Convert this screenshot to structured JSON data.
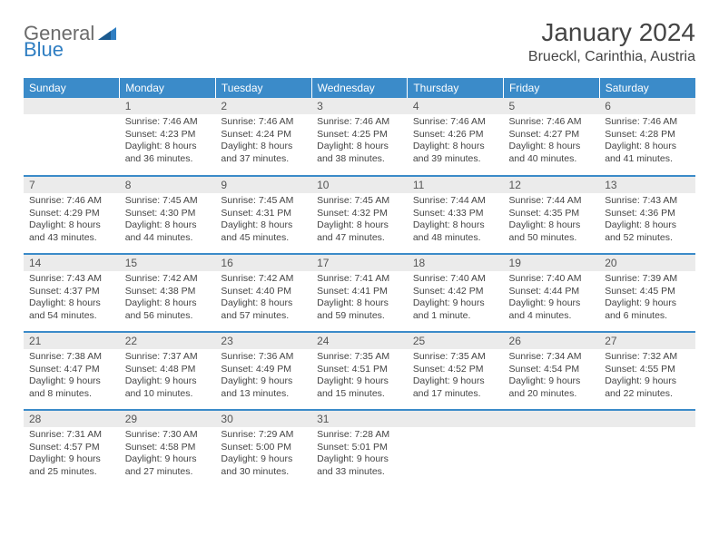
{
  "logo": {
    "general": "General",
    "blue": "Blue"
  },
  "header": {
    "month_title": "January 2024",
    "location": "Brueckl, Carinthia, Austria"
  },
  "colors": {
    "header_bg": "#3b8bc9",
    "header_text": "#ffffff",
    "daynum_bg": "#ebebeb",
    "body_text": "#444444",
    "row_divider": "#3b8bc9",
    "logo_gray": "#6b6b6b",
    "logo_blue": "#2f7ec2"
  },
  "weekdays": [
    "Sunday",
    "Monday",
    "Tuesday",
    "Wednesday",
    "Thursday",
    "Friday",
    "Saturday"
  ],
  "weeks": [
    [
      null,
      {
        "n": "1",
        "sr": "Sunrise: 7:46 AM",
        "ss": "Sunset: 4:23 PM",
        "d1": "Daylight: 8 hours",
        "d2": "and 36 minutes."
      },
      {
        "n": "2",
        "sr": "Sunrise: 7:46 AM",
        "ss": "Sunset: 4:24 PM",
        "d1": "Daylight: 8 hours",
        "d2": "and 37 minutes."
      },
      {
        "n": "3",
        "sr": "Sunrise: 7:46 AM",
        "ss": "Sunset: 4:25 PM",
        "d1": "Daylight: 8 hours",
        "d2": "and 38 minutes."
      },
      {
        "n": "4",
        "sr": "Sunrise: 7:46 AM",
        "ss": "Sunset: 4:26 PM",
        "d1": "Daylight: 8 hours",
        "d2": "and 39 minutes."
      },
      {
        "n": "5",
        "sr": "Sunrise: 7:46 AM",
        "ss": "Sunset: 4:27 PM",
        "d1": "Daylight: 8 hours",
        "d2": "and 40 minutes."
      },
      {
        "n": "6",
        "sr": "Sunrise: 7:46 AM",
        "ss": "Sunset: 4:28 PM",
        "d1": "Daylight: 8 hours",
        "d2": "and 41 minutes."
      }
    ],
    [
      {
        "n": "7",
        "sr": "Sunrise: 7:46 AM",
        "ss": "Sunset: 4:29 PM",
        "d1": "Daylight: 8 hours",
        "d2": "and 43 minutes."
      },
      {
        "n": "8",
        "sr": "Sunrise: 7:45 AM",
        "ss": "Sunset: 4:30 PM",
        "d1": "Daylight: 8 hours",
        "d2": "and 44 minutes."
      },
      {
        "n": "9",
        "sr": "Sunrise: 7:45 AM",
        "ss": "Sunset: 4:31 PM",
        "d1": "Daylight: 8 hours",
        "d2": "and 45 minutes."
      },
      {
        "n": "10",
        "sr": "Sunrise: 7:45 AM",
        "ss": "Sunset: 4:32 PM",
        "d1": "Daylight: 8 hours",
        "d2": "and 47 minutes."
      },
      {
        "n": "11",
        "sr": "Sunrise: 7:44 AM",
        "ss": "Sunset: 4:33 PM",
        "d1": "Daylight: 8 hours",
        "d2": "and 48 minutes."
      },
      {
        "n": "12",
        "sr": "Sunrise: 7:44 AM",
        "ss": "Sunset: 4:35 PM",
        "d1": "Daylight: 8 hours",
        "d2": "and 50 minutes."
      },
      {
        "n": "13",
        "sr": "Sunrise: 7:43 AM",
        "ss": "Sunset: 4:36 PM",
        "d1": "Daylight: 8 hours",
        "d2": "and 52 minutes."
      }
    ],
    [
      {
        "n": "14",
        "sr": "Sunrise: 7:43 AM",
        "ss": "Sunset: 4:37 PM",
        "d1": "Daylight: 8 hours",
        "d2": "and 54 minutes."
      },
      {
        "n": "15",
        "sr": "Sunrise: 7:42 AM",
        "ss": "Sunset: 4:38 PM",
        "d1": "Daylight: 8 hours",
        "d2": "and 56 minutes."
      },
      {
        "n": "16",
        "sr": "Sunrise: 7:42 AM",
        "ss": "Sunset: 4:40 PM",
        "d1": "Daylight: 8 hours",
        "d2": "and 57 minutes."
      },
      {
        "n": "17",
        "sr": "Sunrise: 7:41 AM",
        "ss": "Sunset: 4:41 PM",
        "d1": "Daylight: 8 hours",
        "d2": "and 59 minutes."
      },
      {
        "n": "18",
        "sr": "Sunrise: 7:40 AM",
        "ss": "Sunset: 4:42 PM",
        "d1": "Daylight: 9 hours",
        "d2": "and 1 minute."
      },
      {
        "n": "19",
        "sr": "Sunrise: 7:40 AM",
        "ss": "Sunset: 4:44 PM",
        "d1": "Daylight: 9 hours",
        "d2": "and 4 minutes."
      },
      {
        "n": "20",
        "sr": "Sunrise: 7:39 AM",
        "ss": "Sunset: 4:45 PM",
        "d1": "Daylight: 9 hours",
        "d2": "and 6 minutes."
      }
    ],
    [
      {
        "n": "21",
        "sr": "Sunrise: 7:38 AM",
        "ss": "Sunset: 4:47 PM",
        "d1": "Daylight: 9 hours",
        "d2": "and 8 minutes."
      },
      {
        "n": "22",
        "sr": "Sunrise: 7:37 AM",
        "ss": "Sunset: 4:48 PM",
        "d1": "Daylight: 9 hours",
        "d2": "and 10 minutes."
      },
      {
        "n": "23",
        "sr": "Sunrise: 7:36 AM",
        "ss": "Sunset: 4:49 PM",
        "d1": "Daylight: 9 hours",
        "d2": "and 13 minutes."
      },
      {
        "n": "24",
        "sr": "Sunrise: 7:35 AM",
        "ss": "Sunset: 4:51 PM",
        "d1": "Daylight: 9 hours",
        "d2": "and 15 minutes."
      },
      {
        "n": "25",
        "sr": "Sunrise: 7:35 AM",
        "ss": "Sunset: 4:52 PM",
        "d1": "Daylight: 9 hours",
        "d2": "and 17 minutes."
      },
      {
        "n": "26",
        "sr": "Sunrise: 7:34 AM",
        "ss": "Sunset: 4:54 PM",
        "d1": "Daylight: 9 hours",
        "d2": "and 20 minutes."
      },
      {
        "n": "27",
        "sr": "Sunrise: 7:32 AM",
        "ss": "Sunset: 4:55 PM",
        "d1": "Daylight: 9 hours",
        "d2": "and 22 minutes."
      }
    ],
    [
      {
        "n": "28",
        "sr": "Sunrise: 7:31 AM",
        "ss": "Sunset: 4:57 PM",
        "d1": "Daylight: 9 hours",
        "d2": "and 25 minutes."
      },
      {
        "n": "29",
        "sr": "Sunrise: 7:30 AM",
        "ss": "Sunset: 4:58 PM",
        "d1": "Daylight: 9 hours",
        "d2": "and 27 minutes."
      },
      {
        "n": "30",
        "sr": "Sunrise: 7:29 AM",
        "ss": "Sunset: 5:00 PM",
        "d1": "Daylight: 9 hours",
        "d2": "and 30 minutes."
      },
      {
        "n": "31",
        "sr": "Sunrise: 7:28 AM",
        "ss": "Sunset: 5:01 PM",
        "d1": "Daylight: 9 hours",
        "d2": "and 33 minutes."
      },
      null,
      null,
      null
    ]
  ]
}
